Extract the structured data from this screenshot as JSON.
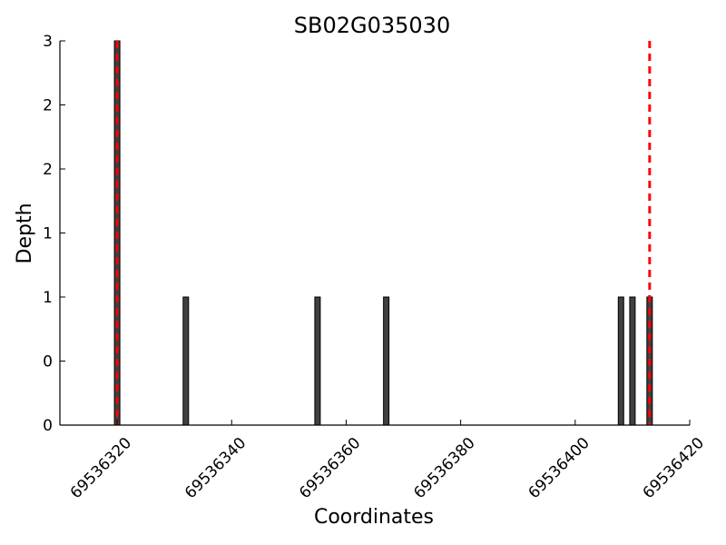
{
  "chart_data": {
    "type": "bar",
    "title": "SB02G035030",
    "xlabel": "Coordinates",
    "ylabel": "Depth",
    "xlim": [
      69536310,
      69536420
    ],
    "ylim": [
      0,
      3
    ],
    "x_ticks": [
      69536320,
      69536340,
      69536360,
      69536380,
      69536400,
      69536420
    ],
    "x_tick_labels": [
      "69536320",
      "69536340",
      "69536360",
      "69536380",
      "69536400",
      "69536420"
    ],
    "y_ticks": [
      0,
      0.5,
      1,
      1.5,
      2,
      2.5,
      3
    ],
    "y_tick_labels": [
      "0",
      "0",
      "1",
      "1",
      "2",
      "2",
      "3"
    ],
    "bar_color": "#404040",
    "marker_color": "#ff0000",
    "bars": [
      {
        "x": 69536320,
        "y": 3
      },
      {
        "x": 69536332,
        "y": 1
      },
      {
        "x": 69536355,
        "y": 1
      },
      {
        "x": 69536367,
        "y": 1
      },
      {
        "x": 69536408,
        "y": 1
      },
      {
        "x": 69536410,
        "y": 1
      },
      {
        "x": 69536413,
        "y": 1
      }
    ],
    "markers": [
      69536320,
      69536413
    ],
    "grid": false
  }
}
